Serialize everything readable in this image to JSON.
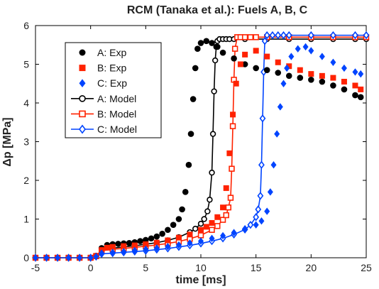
{
  "chart_data": {
    "type": "scatter",
    "title": "RCM (Tanaka et al.): Fuels A, B, C",
    "xlabel": "time [ms]",
    "ylabel": "Δp [MPa]",
    "xlim": [
      -5,
      25
    ],
    "ylim": [
      0,
      6
    ],
    "xticks": [
      -5,
      0,
      5,
      10,
      15,
      20,
      25
    ],
    "yticks": [
      0,
      1,
      2,
      3,
      4,
      5,
      6
    ],
    "grid": false,
    "legend_position": "top-left",
    "series": [
      {
        "name": "A: Exp",
        "kind": "exp",
        "marker": "circle",
        "color": "#000000",
        "x": [
          -5,
          -4,
          -3,
          -2,
          -1,
          0,
          0.5,
          1,
          1.5,
          2,
          2.5,
          3,
          3.5,
          4,
          4.5,
          5,
          5.5,
          6,
          6.5,
          7,
          7.5,
          8,
          8.3,
          8.6,
          8.9,
          9.1,
          9.3,
          9.5,
          9.7,
          10,
          10.5,
          11,
          11.5,
          12,
          13,
          14,
          15,
          16,
          17,
          18,
          19,
          20,
          21,
          22,
          23,
          24,
          24.5
        ],
        "y": [
          0,
          0,
          0,
          0,
          0,
          0,
          0.05,
          0.25,
          0.33,
          0.35,
          0.36,
          0.37,
          0.38,
          0.4,
          0.43,
          0.46,
          0.5,
          0.55,
          0.62,
          0.72,
          0.85,
          1.0,
          1.25,
          1.7,
          2.4,
          3.2,
          4.1,
          4.9,
          5.4,
          5.55,
          5.6,
          5.55,
          5.45,
          5.3,
          5.15,
          5.0,
          4.9,
          4.85,
          4.78,
          4.7,
          4.65,
          4.6,
          4.55,
          4.45,
          4.35,
          4.2,
          4.15
        ]
      },
      {
        "name": "B: Exp",
        "kind": "exp",
        "marker": "square",
        "color": "#ff2200",
        "x": [
          -5,
          -4,
          -3,
          -2,
          -1,
          0,
          0.5,
          1,
          1.5,
          2,
          3,
          4,
          5,
          6,
          7,
          8,
          9,
          10,
          10.5,
          11,
          11.5,
          12,
          12.3,
          12.6,
          12.9,
          13.2,
          13.6,
          14,
          15,
          16,
          17,
          18,
          19,
          20,
          21,
          22,
          23,
          24,
          24.5
        ],
        "y": [
          0,
          0,
          0,
          0,
          0,
          0,
          0.05,
          0.2,
          0.26,
          0.28,
          0.3,
          0.32,
          0.35,
          0.39,
          0.45,
          0.52,
          0.6,
          0.72,
          0.8,
          0.9,
          1.05,
          1.3,
          1.8,
          2.7,
          3.7,
          4.5,
          5.0,
          5.25,
          5.35,
          5.2,
          5.05,
          4.95,
          4.85,
          4.75,
          4.7,
          4.65,
          4.55,
          4.45,
          4.35
        ]
      },
      {
        "name": "C: Exp",
        "kind": "exp",
        "marker": "diamond",
        "color": "#0044ff",
        "x": [
          -5,
          -4,
          -3,
          -2,
          -1,
          0,
          0.5,
          1,
          2,
          3,
          4,
          5,
          6,
          7,
          8,
          9,
          10,
          11,
          12,
          13,
          14,
          15,
          15.5,
          16,
          16.3,
          16.6,
          16.9,
          17.2,
          17.5,
          17.8,
          18.2,
          18.8,
          19.5,
          20,
          21,
          22,
          23,
          24,
          24.5
        ],
        "y": [
          0,
          0,
          0,
          0,
          0,
          0,
          0.03,
          0.12,
          0.14,
          0.16,
          0.19,
          0.22,
          0.25,
          0.29,
          0.33,
          0.38,
          0.43,
          0.5,
          0.57,
          0.65,
          0.75,
          0.85,
          0.95,
          1.2,
          1.7,
          2.4,
          3.2,
          3.9,
          4.5,
          4.9,
          5.2,
          5.4,
          5.45,
          5.35,
          5.2,
          5.05,
          4.9,
          4.8,
          4.75
        ]
      },
      {
        "name": "A: Model",
        "kind": "model",
        "marker": "circle",
        "color": "#000000",
        "x": [
          -5,
          -4,
          -3,
          -2,
          -1,
          0,
          0.5,
          1,
          2,
          3,
          4,
          5,
          6,
          7,
          8,
          9,
          9.5,
          10,
          10.3,
          10.6,
          10.8,
          11,
          11.1,
          11.2,
          11.3,
          11.4,
          11.5,
          11.7,
          12,
          12.3,
          12.6,
          13,
          14,
          16,
          18,
          20,
          22,
          24,
          25
        ],
        "y": [
          0,
          0,
          0,
          0,
          0,
          0,
          0.04,
          0.2,
          0.25,
          0.28,
          0.31,
          0.35,
          0.39,
          0.45,
          0.53,
          0.66,
          0.75,
          0.88,
          1.0,
          1.2,
          1.5,
          2.2,
          3.2,
          4.3,
          5.1,
          5.45,
          5.6,
          5.65,
          5.65,
          5.65,
          5.65,
          5.65,
          5.65,
          5.65,
          5.65,
          5.65,
          5.65,
          5.65,
          5.65
        ]
      },
      {
        "name": "B: Model",
        "kind": "model",
        "marker": "square",
        "color": "#ff2200",
        "x": [
          -5,
          -4,
          -3,
          -2,
          -1,
          0,
          0.5,
          1,
          2,
          3,
          4,
          5,
          6,
          7,
          8,
          9,
          10,
          11,
          11.5,
          12,
          12.3,
          12.5,
          12.7,
          12.8,
          12.9,
          13,
          13.1,
          13.3,
          13.6,
          14,
          14.5,
          15,
          16,
          18,
          20,
          22,
          24,
          25
        ],
        "y": [
          0,
          0,
          0,
          0,
          0,
          0,
          0.04,
          0.18,
          0.22,
          0.24,
          0.27,
          0.3,
          0.33,
          0.37,
          0.42,
          0.49,
          0.58,
          0.72,
          0.82,
          0.98,
          1.1,
          1.3,
          1.55,
          2.3,
          3.4,
          4.6,
          5.4,
          5.7,
          5.7,
          5.7,
          5.7,
          5.7,
          5.7,
          5.7,
          5.7,
          5.7,
          5.7,
          5.7
        ]
      },
      {
        "name": "C: Model",
        "kind": "model",
        "marker": "diamond",
        "color": "#0044ff",
        "x": [
          -5,
          -4,
          -3,
          -2,
          -1,
          0,
          0.5,
          1,
          2,
          3,
          4,
          5,
          6,
          7,
          8,
          9,
          10,
          11,
          12,
          13,
          14,
          14.5,
          15,
          15.2,
          15.4,
          15.5,
          15.6,
          15.7,
          15.8,
          16,
          16.5,
          17,
          17.5,
          18,
          20,
          22,
          24,
          25
        ],
        "y": [
          0,
          0,
          0,
          0,
          0,
          0,
          0.03,
          0.1,
          0.12,
          0.14,
          0.16,
          0.18,
          0.21,
          0.24,
          0.28,
          0.32,
          0.37,
          0.43,
          0.5,
          0.6,
          0.73,
          0.85,
          1.05,
          1.25,
          1.6,
          2.4,
          3.6,
          4.8,
          5.6,
          5.75,
          5.75,
          5.75,
          5.75,
          5.75,
          5.75,
          5.75,
          5.75,
          5.75
        ]
      }
    ]
  }
}
